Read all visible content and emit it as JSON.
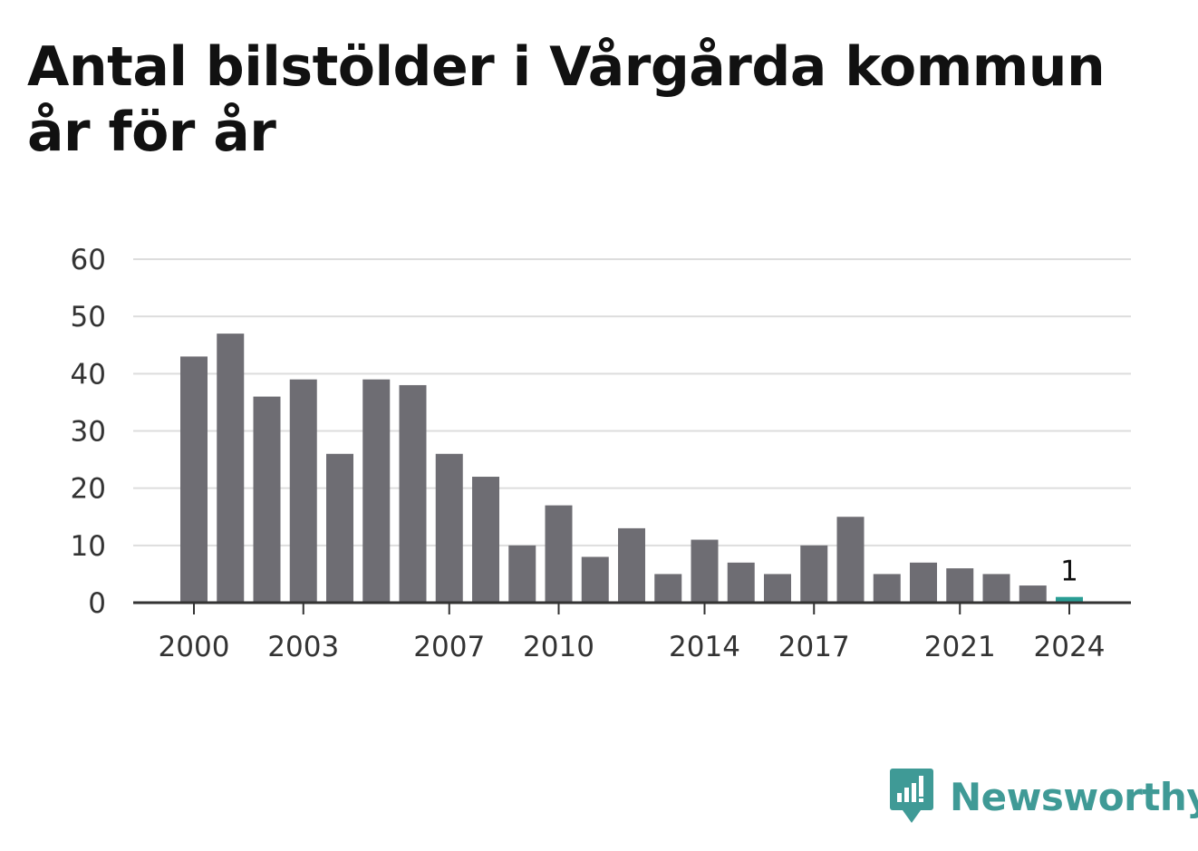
{
  "chart_data": {
    "type": "bar",
    "title": "Antal bilstölder i Vårgårda kommun år för år",
    "categories": [
      "2000",
      "2001",
      "2002",
      "2003",
      "2004",
      "2005",
      "2006",
      "2007",
      "2008",
      "2009",
      "2010",
      "2011",
      "2012",
      "2013",
      "2014",
      "2015",
      "2016",
      "2017",
      "2018",
      "2019",
      "2020",
      "2021",
      "2022",
      "2023",
      "2024"
    ],
    "values": [
      43,
      47,
      36,
      39,
      26,
      39,
      38,
      26,
      22,
      10,
      17,
      8,
      13,
      5,
      11,
      7,
      5,
      10,
      15,
      5,
      7,
      6,
      5,
      3,
      1
    ],
    "x_tick_labels": [
      "2000",
      "2003",
      "2007",
      "2010",
      "2014",
      "2017",
      "2021",
      "2024"
    ],
    "y_ticks": [
      0,
      10,
      20,
      30,
      40,
      50,
      60
    ],
    "ylim": [
      0,
      60
    ],
    "xlabel": "",
    "ylabel": "",
    "grid": true,
    "highlight_index": 24,
    "highlight_label": "1",
    "colors": {
      "bar": "#6e6d73",
      "highlight": "#2a9d94",
      "grid": "#dddddd",
      "axis": "#333333"
    }
  },
  "brand": {
    "name": "Newsworthy",
    "icon": "newsworthy-logo-icon",
    "color": "#3f9a96"
  }
}
